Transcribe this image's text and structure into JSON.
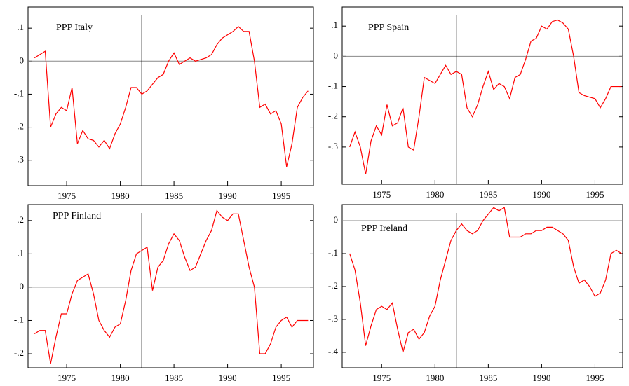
{
  "chart_data": [
    {
      "type": "line",
      "title": "PPP Italy",
      "color": "#ff0000",
      "x": [
        1972,
        1972.5,
        1973,
        1973.5,
        1974,
        1974.5,
        1975,
        1975.5,
        1976,
        1976.5,
        1977,
        1977.5,
        1978,
        1978.5,
        1979,
        1979.5,
        1980,
        1980.5,
        1981,
        1981.5,
        1982,
        1982.5,
        1983,
        1983.5,
        1984,
        1984.5,
        1985,
        1985.5,
        1986,
        1986.5,
        1987,
        1987.5,
        1988,
        1988.5,
        1989,
        1989.5,
        1990,
        1990.5,
        1991,
        1991.5,
        1992,
        1992.5,
        1993,
        1993.5,
        1994,
        1994.5,
        1995,
        1995.5,
        1996,
        1996.5,
        1997,
        1997.5
      ],
      "values": [
        0.01,
        0.02,
        0.03,
        -0.2,
        -0.16,
        -0.14,
        -0.15,
        -0.08,
        -0.25,
        -0.21,
        -0.235,
        -0.24,
        -0.26,
        -0.24,
        -0.265,
        -0.22,
        -0.19,
        -0.14,
        -0.08,
        -0.08,
        -0.1,
        -0.09,
        -0.07,
        -0.05,
        -0.04,
        0.0,
        0.025,
        -0.01,
        0.0,
        0.01,
        0.0,
        0.005,
        0.01,
        0.02,
        0.05,
        0.07,
        0.08,
        0.09,
        0.105,
        0.09,
        0.09,
        0.0,
        -0.14,
        -0.13,
        -0.16,
        -0.15,
        -0.19,
        -0.32,
        -0.25,
        -0.14,
        -0.11,
        -0.09
      ],
      "xlim": [
        1971.4,
        1998
      ],
      "xticks": [
        1975,
        1980,
        1985,
        1990,
        1995
      ],
      "ylim": [
        -0.377,
        0.164
      ],
      "yticks": [
        {
          "value": -0.3,
          "label": "-.3"
        },
        {
          "value": -0.2,
          "label": "-.2"
        },
        {
          "value": -0.1,
          "label": "-.1"
        },
        0,
        {
          "value": 0.1,
          "label": ".1"
        }
      ],
      "vline": 1982,
      "hline": 0
    },
    {
      "type": "line",
      "title": "PPP Spain",
      "color": "#ff0000",
      "x": [
        1972,
        1972.5,
        1973,
        1973.5,
        1974,
        1974.5,
        1975,
        1975.5,
        1976,
        1976.5,
        1977,
        1977.5,
        1978,
        1978.5,
        1979,
        1979.5,
        1980,
        1980.5,
        1981,
        1981.5,
        1982,
        1982.5,
        1983,
        1983.5,
        1984,
        1984.5,
        1985,
        1985.5,
        1986,
        1986.5,
        1987,
        1987.5,
        1988,
        1988.5,
        1989,
        1989.5,
        1990,
        1990.5,
        1991,
        1991.5,
        1992,
        1992.5,
        1993,
        1993.5,
        1994,
        1994.5,
        1995,
        1995.5,
        1996,
        1996.5,
        1997,
        1997.5
      ],
      "values": [
        -0.3,
        -0.25,
        -0.3,
        -0.39,
        -0.28,
        -0.23,
        -0.26,
        -0.16,
        -0.23,
        -0.22,
        -0.17,
        -0.3,
        -0.31,
        -0.2,
        -0.07,
        -0.08,
        -0.09,
        -0.06,
        -0.03,
        -0.06,
        -0.05,
        -0.06,
        -0.17,
        -0.2,
        -0.16,
        -0.1,
        -0.05,
        -0.11,
        -0.09,
        -0.1,
        -0.14,
        -0.07,
        -0.06,
        -0.01,
        0.05,
        0.06,
        0.1,
        0.09,
        0.115,
        0.12,
        0.11,
        0.09,
        0.0,
        -0.12,
        -0.13,
        -0.135,
        -0.14,
        -0.17,
        -0.14,
        -0.1,
        -0.1,
        -0.1
      ],
      "xlim": [
        1971.3,
        1997.6
      ],
      "xticks": [
        1975,
        1980,
        1985,
        1990,
        1995
      ],
      "ylim": [
        -0.423,
        0.163
      ],
      "yticks": [
        {
          "value": -0.3,
          "label": "-.3"
        },
        {
          "value": -0.2,
          "label": "-.2"
        },
        {
          "value": -0.1,
          "label": "-.1"
        },
        0,
        {
          "value": 0.1,
          "label": ".1"
        }
      ],
      "vline": 1982,
      "hline": 0
    },
    {
      "type": "line",
      "title": "PPP Finland",
      "color": "#ff0000",
      "x": [
        1972,
        1972.5,
        1973,
        1973.5,
        1974,
        1974.5,
        1975,
        1975.5,
        1976,
        1976.5,
        1977,
        1977.5,
        1978,
        1978.5,
        1979,
        1979.5,
        1980,
        1980.5,
        1981,
        1981.5,
        1982,
        1982.5,
        1983,
        1983.5,
        1984,
        1984.5,
        1985,
        1985.5,
        1986,
        1986.5,
        1987,
        1987.5,
        1988,
        1988.5,
        1989,
        1989.5,
        1990,
        1990.5,
        1991,
        1991.5,
        1992,
        1992.5,
        1993,
        1993.5,
        1994,
        1994.5,
        1995,
        1995.5,
        1996,
        1996.5,
        1997,
        1997.5
      ],
      "values": [
        -0.14,
        -0.13,
        -0.13,
        -0.23,
        -0.15,
        -0.08,
        -0.08,
        -0.02,
        0.02,
        0.03,
        0.04,
        -0.02,
        -0.1,
        -0.13,
        -0.15,
        -0.12,
        -0.11,
        -0.04,
        0.05,
        0.1,
        0.11,
        0.12,
        -0.01,
        0.06,
        0.08,
        0.13,
        0.16,
        0.14,
        0.09,
        0.05,
        0.06,
        0.1,
        0.14,
        0.17,
        0.23,
        0.21,
        0.2,
        0.22,
        0.22,
        0.14,
        0.06,
        0.0,
        -0.2,
        -0.2,
        -0.17,
        -0.12,
        -0.1,
        -0.09,
        -0.12,
        -0.1,
        -0.1,
        -0.1
      ],
      "xlim": [
        1971.4,
        1998
      ],
      "xticks": [
        1975,
        1980,
        1985,
        1990,
        1995
      ],
      "ylim": [
        -0.242,
        0.248
      ],
      "yticks": [
        {
          "value": -0.2,
          "label": "-.2"
        },
        {
          "value": -0.1,
          "label": "-.1"
        },
        0,
        {
          "value": 0.1,
          "label": ".1"
        },
        {
          "value": 0.2,
          "label": ".2"
        }
      ],
      "vline": 1982,
      "hline": 0
    },
    {
      "type": "line",
      "title": "PPP Ireland",
      "color": "#ff0000",
      "x": [
        1972,
        1972.5,
        1973,
        1973.5,
        1974,
        1974.5,
        1975,
        1975.5,
        1976,
        1976.5,
        1977,
        1977.5,
        1978,
        1978.5,
        1979,
        1979.5,
        1980,
        1980.5,
        1981,
        1981.5,
        1982,
        1982.5,
        1983,
        1983.5,
        1984,
        1984.5,
        1985,
        1985.5,
        1986,
        1986.5,
        1987,
        1987.5,
        1988,
        1988.5,
        1989,
        1989.5,
        1990,
        1990.5,
        1991,
        1991.5,
        1992,
        1992.5,
        1993,
        1993.5,
        1994,
        1994.5,
        1995,
        1995.5,
        1996,
        1996.5,
        1997,
        1997.5
      ],
      "values": [
        -0.1,
        -0.15,
        -0.25,
        -0.38,
        -0.32,
        -0.27,
        -0.26,
        -0.27,
        -0.25,
        -0.33,
        -0.4,
        -0.34,
        -0.33,
        -0.36,
        -0.34,
        -0.29,
        -0.26,
        -0.18,
        -0.12,
        -0.06,
        -0.03,
        -0.01,
        -0.03,
        -0.04,
        -0.03,
        0.0,
        0.02,
        0.04,
        0.03,
        0.04,
        -0.05,
        -0.05,
        -0.05,
        -0.04,
        -0.04,
        -0.03,
        -0.03,
        -0.02,
        -0.02,
        -0.03,
        -0.04,
        -0.06,
        -0.14,
        -0.19,
        -0.18,
        -0.2,
        -0.23,
        -0.22,
        -0.18,
        -0.1,
        -0.09,
        -0.1
      ],
      "xlim": [
        1971.3,
        1997.6
      ],
      "xticks": [
        1975,
        1980,
        1985,
        1990,
        1995
      ],
      "ylim": [
        -0.447,
        0.049
      ],
      "yticks": [
        {
          "value": -0.4,
          "label": "-.4"
        },
        {
          "value": -0.3,
          "label": "-.3"
        },
        {
          "value": -0.2,
          "label": "-.2"
        },
        {
          "value": -0.1,
          "label": "-.1"
        },
        0
      ],
      "vline": 1982,
      "hline": 0
    }
  ]
}
